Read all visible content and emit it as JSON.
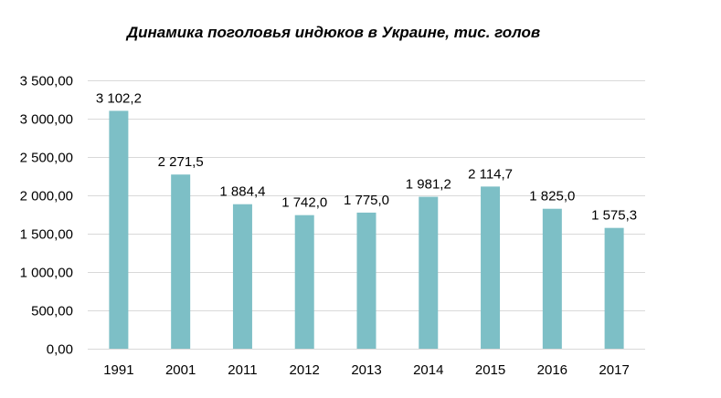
{
  "chart_data": {
    "type": "bar",
    "title": "Динамика поголовья индюков в Украине, тис. голов",
    "categories": [
      "1991",
      "2001",
      "2011",
      "2012",
      "2013",
      "2014",
      "2015",
      "2016",
      "2017"
    ],
    "values": [
      3102.2,
      2271.5,
      1884.4,
      1742.0,
      1775.0,
      1981.2,
      2114.7,
      1825.0,
      1575.3
    ],
    "value_labels": [
      "3 102,2",
      "2 271,5",
      "1 884,4",
      "1 742,0",
      "1 775,0",
      "1 981,2",
      "2 114,7",
      "1 825,0",
      "1 575,3"
    ],
    "ylim": [
      0,
      3500
    ],
    "yticks": [
      0,
      500,
      1000,
      1500,
      2000,
      2500,
      3000,
      3500
    ],
    "ytick_labels": [
      "0,00",
      "500,00",
      "1 000,00",
      "1 500,00",
      "2 000,00",
      "2 500,00",
      "3 000,00",
      "3 500,00"
    ],
    "grid": true,
    "bar_color": "#7dbfc6",
    "grid_color": "#d9d9d9"
  }
}
